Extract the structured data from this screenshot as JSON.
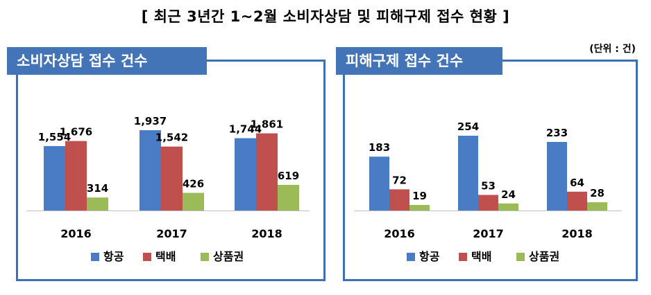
{
  "title": "[ 최근 3년간 1~2월 소비자상담 및 피해구제 접수 현황 ]",
  "unit_label": "(단위 : 건)",
  "colors": {
    "항공": "#4a7cc6",
    "택배": "#c0504d",
    "상품권": "#9bbb59",
    "panel_border": "#3d6fb3",
    "header_bg": "#4474b8"
  },
  "chart_data": [
    {
      "type": "bar",
      "title": "소비자상담 접수 건수",
      "categories": [
        "2016",
        "2017",
        "2018"
      ],
      "series": [
        {
          "name": "항공",
          "values": [
            1554,
            1937,
            1744
          ],
          "labels": [
            "1,554",
            "1,937",
            "1,744"
          ]
        },
        {
          "name": "택배",
          "values": [
            1676,
            1542,
            1861
          ],
          "labels": [
            "1,676",
            "1,542",
            "1,861"
          ]
        },
        {
          "name": "상품권",
          "values": [
            314,
            426,
            619
          ],
          "labels": [
            "314",
            "426",
            "619"
          ]
        }
      ],
      "legend": "bottom",
      "grid": false
    },
    {
      "type": "bar",
      "title": "피해구제 접수 건수",
      "categories": [
        "2016",
        "2017",
        "2018"
      ],
      "series": [
        {
          "name": "항공",
          "values": [
            183,
            254,
            233
          ],
          "labels": [
            "183",
            "254",
            "233"
          ]
        },
        {
          "name": "택배",
          "values": [
            72,
            53,
            64
          ],
          "labels": [
            "72",
            "53",
            "64"
          ]
        },
        {
          "name": "상품권",
          "values": [
            19,
            24,
            28
          ],
          "labels": [
            "19",
            "24",
            "28"
          ]
        }
      ],
      "legend": "bottom",
      "grid": false
    }
  ]
}
